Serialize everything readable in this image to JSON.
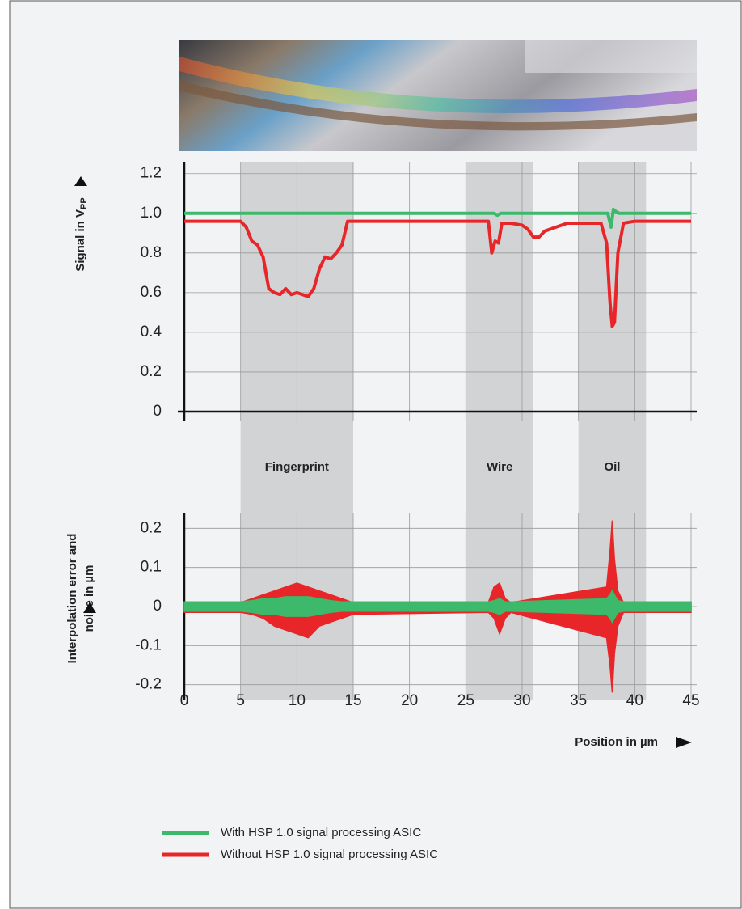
{
  "chart_data": [
    {
      "type": "line",
      "ylabel": "Signal in V",
      "ylabel_sub": "PP",
      "xlim": [
        0,
        45
      ],
      "xticks": [
        0,
        5,
        10,
        15,
        20,
        25,
        30,
        35,
        40,
        45
      ],
      "ylim": [
        -0.045,
        1.26
      ],
      "yticks": [
        0,
        0.2,
        0.4,
        0.6,
        0.8,
        {
          "value": 1,
          "label": "1.0"
        },
        1.2
      ],
      "grid": true,
      "regions": [
        {
          "label": "Fingerprint",
          "start": 5,
          "end": 15
        },
        {
          "label": "Wire",
          "start": 25,
          "end": 31
        },
        {
          "label": "Oil",
          "start": 35,
          "end": 41
        }
      ],
      "series": [
        {
          "color": "#3cb96a",
          "x": [
            0,
            27.5,
            27.8,
            28.1,
            37.6,
            37.9,
            38.1,
            38.3,
            38.6,
            45
          ],
          "values": [
            1.0,
            1.0,
            0.99,
            1.0,
            1.0,
            0.93,
            1.02,
            1.01,
            1.0,
            1.0
          ]
        },
        {
          "color": "#e8262a",
          "x": [
            0,
            5,
            5.5,
            6,
            6.5,
            7,
            7.5,
            8,
            8.5,
            9,
            9.5,
            10,
            10.5,
            11,
            11.5,
            12,
            12.5,
            13,
            13.5,
            14,
            14.5,
            15,
            27,
            27.3,
            27.6,
            27.9,
            28.2,
            28.5,
            29,
            30,
            30.5,
            31,
            31.5,
            32,
            33,
            34,
            37,
            37.5,
            37.8,
            38,
            38.2,
            38.5,
            39,
            40,
            45
          ],
          "values": [
            0.96,
            0.96,
            0.93,
            0.86,
            0.84,
            0.78,
            0.62,
            0.6,
            0.59,
            0.62,
            0.59,
            0.6,
            0.59,
            0.58,
            0.62,
            0.72,
            0.78,
            0.77,
            0.8,
            0.84,
            0.96,
            0.96,
            0.96,
            0.8,
            0.86,
            0.85,
            0.95,
            0.95,
            0.95,
            0.94,
            0.92,
            0.88,
            0.88,
            0.91,
            0.93,
            0.95,
            0.95,
            0.85,
            0.55,
            0.43,
            0.45,
            0.8,
            0.95,
            0.96,
            0.96
          ]
        }
      ]
    },
    {
      "type": "area",
      "ylabel": [
        "Interpolation error and",
        "noise in µm"
      ],
      "xlabel": "Position in µm",
      "xlim": [
        0,
        45
      ],
      "xticks": [
        0,
        5,
        10,
        15,
        20,
        25,
        30,
        35,
        40,
        45
      ],
      "ylim": [
        -0.24,
        0.24
      ],
      "yticks": [
        -0.2,
        -0.1,
        0,
        0.1,
        0.2
      ],
      "grid": true,
      "x": [
        0,
        5,
        6,
        7,
        8,
        9,
        10,
        11,
        12,
        13,
        14,
        15,
        27,
        27.5,
        28,
        28.5,
        29,
        37.5,
        37.8,
        38,
        38.2,
        38.5,
        39,
        45
      ],
      "series": [
        {
          "name": "With HSP 1.0 signal processing ASIC",
          "color": "#3cb96a",
          "upper": [
            0.012,
            0.012,
            0.015,
            0.02,
            0.02,
            0.025,
            0.025,
            0.025,
            0.02,
            0.015,
            0.012,
            0.012,
            0.012,
            0.015,
            0.02,
            0.012,
            0.012,
            0.02,
            0.03,
            0.04,
            0.03,
            0.015,
            0.012,
            0.012
          ],
          "lower": [
            -0.012,
            -0.012,
            -0.015,
            -0.02,
            -0.02,
            -0.025,
            -0.025,
            -0.025,
            -0.02,
            -0.015,
            -0.012,
            -0.012,
            -0.012,
            -0.015,
            -0.02,
            -0.012,
            -0.012,
            -0.02,
            -0.03,
            -0.04,
            -0.03,
            -0.015,
            -0.012,
            -0.012
          ]
        },
        {
          "name": "Without HSP 1.0 signal processing ASIC",
          "color": "#e8262a",
          "upper": [
            0.01,
            0.01,
            0.02,
            0.03,
            0.04,
            0.05,
            0.06,
            0.05,
            0.04,
            0.03,
            0.02,
            0.01,
            0.01,
            0.05,
            0.06,
            0.02,
            0.01,
            0.05,
            0.14,
            0.22,
            0.12,
            0.04,
            0.01,
            0.01
          ],
          "lower": [
            -0.015,
            -0.015,
            -0.02,
            -0.03,
            -0.05,
            -0.06,
            -0.07,
            -0.08,
            -0.05,
            -0.04,
            -0.03,
            -0.02,
            -0.015,
            -0.03,
            -0.07,
            -0.03,
            -0.015,
            -0.08,
            -0.15,
            -0.22,
            -0.12,
            -0.05,
            -0.015,
            -0.015
          ]
        }
      ]
    }
  ]
}
